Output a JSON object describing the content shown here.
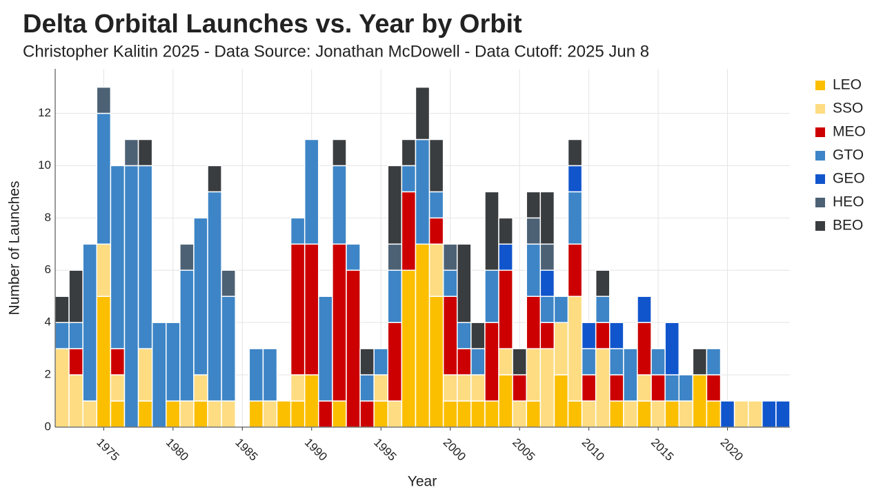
{
  "chart_data": {
    "type": "stacked_bar",
    "title": "Delta Orbital Launches vs. Year by Orbit",
    "subtitle": "Christopher Kalitin 2025 - Data Source: Jonathan McDowell - Data Cutoff: 2025 Jun 8",
    "x_label": "Year",
    "y_label": "Number of Launches",
    "x": [
      1972,
      1973,
      1974,
      1975,
      1976,
      1977,
      1978,
      1979,
      1980,
      1981,
      1982,
      1983,
      1984,
      1985,
      1986,
      1987,
      1988,
      1989,
      1990,
      1991,
      1992,
      1993,
      1994,
      1995,
      1996,
      1997,
      1998,
      1999,
      2000,
      2001,
      2002,
      2003,
      2004,
      2005,
      2006,
      2007,
      2008,
      2009,
      2010,
      2011,
      2012,
      2013,
      2014,
      2015,
      2016,
      2017,
      2018,
      2019,
      2020,
      2021,
      2022,
      2023,
      2024
    ],
    "xlim": [
      1971.5,
      2024.5
    ],
    "xticks": [
      1975,
      1980,
      1985,
      1990,
      1995,
      2000,
      2005,
      2010,
      2015,
      2020
    ],
    "ylim": [
      0,
      13.7
    ],
    "yticks": [
      0,
      2,
      4,
      6,
      8,
      10,
      12
    ],
    "grid": true,
    "legend": "right",
    "series": [
      {
        "name": "LEO",
        "color": "#fbbf00",
        "values": [
          0,
          0,
          0,
          5,
          1,
          0,
          1,
          0,
          1,
          0,
          1,
          0,
          0,
          0,
          1,
          0,
          1,
          1,
          2,
          0,
          1,
          0,
          0,
          1,
          0,
          6,
          7,
          5,
          1,
          1,
          1,
          1,
          2,
          0,
          1,
          0,
          2,
          1,
          0,
          0,
          1,
          0,
          1,
          0,
          1,
          0,
          2,
          1,
          0,
          0,
          0,
          0,
          0
        ]
      },
      {
        "name": "SSO",
        "color": "#fddc82",
        "values": [
          3,
          2,
          1,
          2,
          1,
          0,
          2,
          0,
          0,
          1,
          1,
          1,
          1,
          0,
          0,
          1,
          0,
          1,
          0,
          0,
          0,
          0,
          0,
          1,
          1,
          0,
          0,
          2,
          1,
          1,
          1,
          0,
          1,
          1,
          2,
          3,
          2,
          4,
          1,
          3,
          0,
          1,
          1,
          1,
          0,
          1,
          0,
          0,
          0,
          1,
          1,
          0,
          0
        ]
      },
      {
        "name": "MEO",
        "color": "#cc0000",
        "values": [
          0,
          1,
          0,
          0,
          1,
          0,
          0,
          0,
          0,
          0,
          0,
          0,
          0,
          0,
          0,
          0,
          0,
          5,
          5,
          1,
          6,
          6,
          1,
          0,
          3,
          3,
          0,
          1,
          3,
          1,
          0,
          3,
          3,
          1,
          2,
          1,
          0,
          2,
          1,
          1,
          1,
          0,
          2,
          1,
          0,
          0,
          0,
          1,
          0,
          0,
          0,
          0,
          0
        ]
      },
      {
        "name": "GTO",
        "color": "#3d85c6",
        "values": [
          1,
          1,
          6,
          5,
          7,
          10,
          7,
          4,
          3,
          5,
          6,
          8,
          4,
          0,
          2,
          2,
          0,
          1,
          4,
          4,
          3,
          1,
          1,
          1,
          2,
          1,
          4,
          1,
          1,
          1,
          1,
          2,
          0,
          0,
          2,
          1,
          1,
          2,
          1,
          1,
          1,
          2,
          0,
          1,
          1,
          1,
          0,
          1,
          0,
          0,
          0,
          0,
          0
        ]
      },
      {
        "name": "GEO",
        "color": "#1155cc",
        "values": [
          0,
          0,
          0,
          0,
          0,
          0,
          0,
          0,
          0,
          0,
          0,
          0,
          0,
          0,
          0,
          0,
          0,
          0,
          0,
          0,
          0,
          0,
          0,
          0,
          0,
          0,
          0,
          0,
          0,
          0,
          0,
          0,
          1,
          0,
          0,
          1,
          0,
          1,
          1,
          0,
          1,
          0,
          1,
          0,
          2,
          0,
          0,
          0,
          1,
          0,
          0,
          1,
          1
        ]
      },
      {
        "name": "HEO",
        "color": "#4d6175",
        "values": [
          0,
          0,
          0,
          1,
          0,
          1,
          0,
          0,
          0,
          1,
          0,
          0,
          1,
          0,
          0,
          0,
          0,
          0,
          0,
          0,
          0,
          0,
          0,
          0,
          1,
          0,
          0,
          0,
          1,
          0,
          0,
          0,
          0,
          0,
          1,
          1,
          0,
          0,
          0,
          0,
          0,
          0,
          0,
          0,
          0,
          0,
          0,
          0,
          0,
          0,
          0,
          0,
          0
        ]
      },
      {
        "name": "BEO",
        "color": "#3a3d40",
        "values": [
          1,
          2,
          0,
          0,
          0,
          0,
          1,
          0,
          0,
          0,
          0,
          1,
          0,
          0,
          0,
          0,
          0,
          0,
          0,
          0,
          1,
          0,
          1,
          0,
          3,
          1,
          2,
          2,
          0,
          3,
          1,
          3,
          1,
          1,
          1,
          2,
          0,
          1,
          0,
          1,
          0,
          0,
          0,
          0,
          0,
          0,
          1,
          0,
          0,
          0,
          0,
          0,
          0
        ]
      }
    ]
  }
}
